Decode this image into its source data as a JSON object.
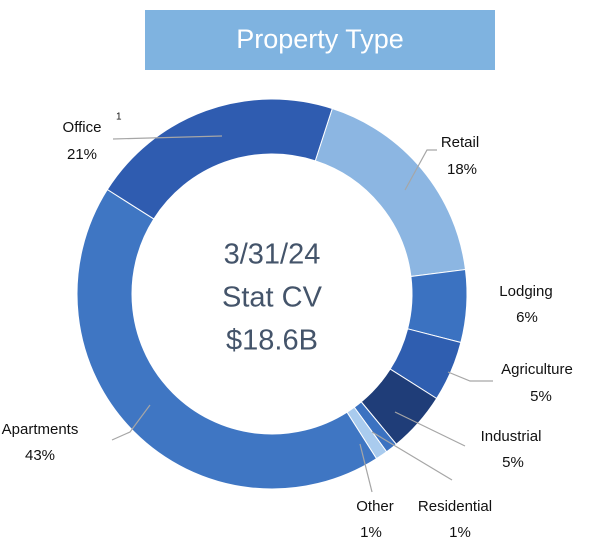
{
  "chart_data": {
    "type": "donut",
    "title": "Property Type",
    "center_text": [
      "3/31/24",
      "Stat CV",
      "$18.6B"
    ],
    "categories": [
      "Retail",
      "Lodging",
      "Agriculture",
      "Industrial",
      "Residential",
      "Other",
      "Apartments",
      "Office"
    ],
    "values": [
      18,
      6,
      5,
      5,
      1,
      1,
      43,
      21
    ],
    "value_labels": [
      "18%",
      "6%",
      "5%",
      "5%",
      "1%",
      "1%",
      "43%",
      "21%"
    ],
    "colors": [
      "#8cb6e2",
      "#3b72c1",
      "#2f5eb0",
      "#1f3d78",
      "#3b72c1",
      "#a9cbee",
      "#3f76c3",
      "#2f5cb0"
    ],
    "annotations": [
      "1"
    ]
  }
}
